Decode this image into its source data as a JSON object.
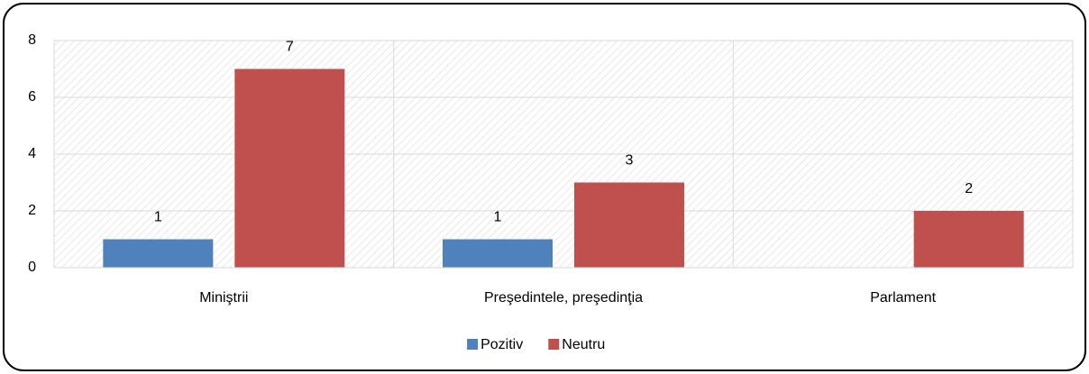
{
  "chart_data": {
    "type": "bar",
    "categories": [
      "Miniştrii",
      "Preşedintele, preşedinţia",
      "Parlament"
    ],
    "series": [
      {
        "name": "Pozitiv",
        "color": "#4f81bd",
        "values": [
          1,
          1,
          null
        ]
      },
      {
        "name": "Neutru",
        "color": "#c0504d",
        "values": [
          7,
          3,
          2
        ]
      }
    ],
    "ylim": [
      0,
      8
    ],
    "yticks": [
      0,
      2,
      4,
      6,
      8
    ],
    "grid": true,
    "legend": "bottom"
  }
}
